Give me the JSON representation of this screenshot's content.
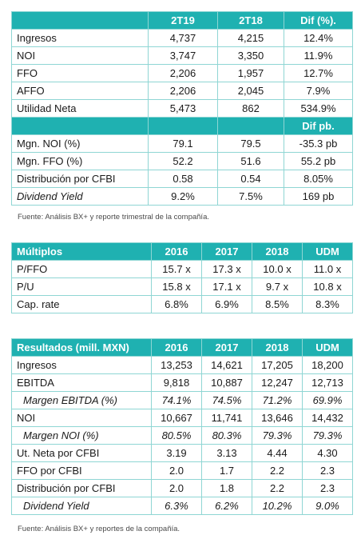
{
  "table1": {
    "headers": [
      "",
      "2T19",
      "2T18",
      "Dif (%)."
    ],
    "rows": [
      {
        "label": "Ingresos",
        "v": [
          "4,737",
          "4,215",
          "12.4%"
        ]
      },
      {
        "label": "NOI",
        "v": [
          "3,747",
          "3,350",
          "11.9%"
        ]
      },
      {
        "label": "FFO",
        "v": [
          "2,206",
          "1,957",
          "12.7%"
        ]
      },
      {
        "label": "AFFO",
        "v": [
          "2,206",
          "2,045",
          "7.9%"
        ]
      },
      {
        "label": "Utilidad Neta",
        "v": [
          "5,473",
          "862",
          "534.9%"
        ]
      }
    ],
    "subheader": [
      "",
      "",
      "",
      "Dif pb."
    ],
    "rows2": [
      {
        "label": "Mgn. NOI (%)",
        "v": [
          "79.1",
          "79.5",
          "-35.3 pb"
        ]
      },
      {
        "label": "Mgn. FFO (%)",
        "v": [
          "52.2",
          "51.6",
          "55.2 pb"
        ]
      },
      {
        "label": "Distribución por CFBI",
        "v": [
          "0.58",
          "0.54",
          "8.05%"
        ]
      },
      {
        "label": "Dividend Yield",
        "v": [
          "9.2%",
          "7.5%",
          "169 pb"
        ]
      }
    ],
    "source": "Fuente: Análisis BX+ y reporte trimestral de la compañía."
  },
  "table2": {
    "headers": [
      "Múltiplos",
      "2016",
      "2017",
      "2018",
      "UDM"
    ],
    "rows": [
      {
        "label": "P/FFO",
        "v": [
          "15.7 x",
          "17.3 x",
          "10.0 x",
          "11.0 x"
        ]
      },
      {
        "label": "P/U",
        "v": [
          "15.8 x",
          "17.1 x",
          "9.7 x",
          "10.8 x"
        ]
      },
      {
        "label": "Cap. rate",
        "v": [
          "6.8%",
          "6.9%",
          "8.5%",
          "8.3%"
        ]
      }
    ]
  },
  "table3": {
    "headers": [
      "Resultados  (mill. MXN)",
      "2016",
      "2017",
      "2018",
      "UDM"
    ],
    "rows": [
      {
        "label": "Ingresos",
        "v": [
          "13,253",
          "14,621",
          "17,205",
          "18,200"
        ]
      },
      {
        "label": "EBITDA",
        "v": [
          "9,818",
          "10,887",
          "12,247",
          "12,713"
        ]
      },
      {
        "label": "Margen EBITDA  (%)",
        "v": [
          "74.1%",
          "74.5%",
          "71.2%",
          "69.9%"
        ]
      },
      {
        "label": "NOI",
        "v": [
          "10,667",
          "11,741",
          "13,646",
          "14,432"
        ]
      },
      {
        "label": "Margen NOI (%)",
        "v": [
          "80.5%",
          "80.3%",
          "79.3%",
          "79.3%"
        ]
      },
      {
        "label": "Ut. Neta por CFBI",
        "v": [
          "3.19",
          "3.13",
          "4.44",
          "4.30"
        ]
      },
      {
        "label": "FFO por CFBI",
        "v": [
          "2.0",
          "1.7",
          "2.2",
          "2.3"
        ]
      },
      {
        "label": "Distribución por CFBI",
        "v": [
          "2.0",
          "1.8",
          "2.2",
          "2.3"
        ]
      },
      {
        "label": "Dividend Yield",
        "v": [
          "6.3%",
          "6.2%",
          "10.2%",
          "9.0%"
        ]
      }
    ],
    "source": "Fuente: Análisis BX+ y reportes de la compañía."
  }
}
